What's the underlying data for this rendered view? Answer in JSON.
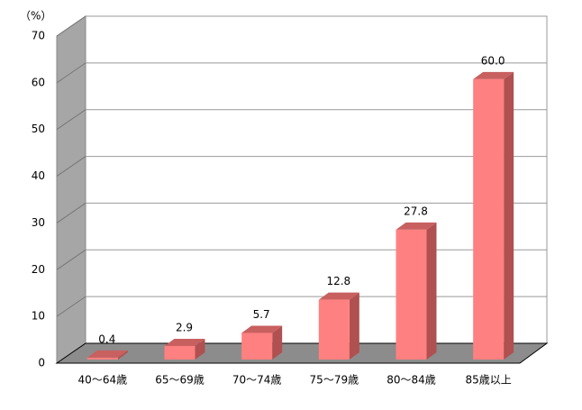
{
  "chart_data": {
    "type": "bar3d",
    "unit_label": "（%）",
    "categories": [
      "40〜64歳",
      "65〜69歳",
      "70〜74歳",
      "75〜79歳",
      "80〜84歳",
      "85歳以上"
    ],
    "values": [
      0.4,
      2.9,
      5.7,
      12.8,
      27.8,
      60.0
    ],
    "value_labels": [
      "0.4",
      "2.9",
      "5.7",
      "12.8",
      "27.8",
      "60.0"
    ],
    "color": "#ff8080",
    "ylim": [
      0,
      70
    ],
    "yticks": [
      0,
      10,
      20,
      30,
      40,
      50,
      60,
      70
    ],
    "grid": true
  }
}
